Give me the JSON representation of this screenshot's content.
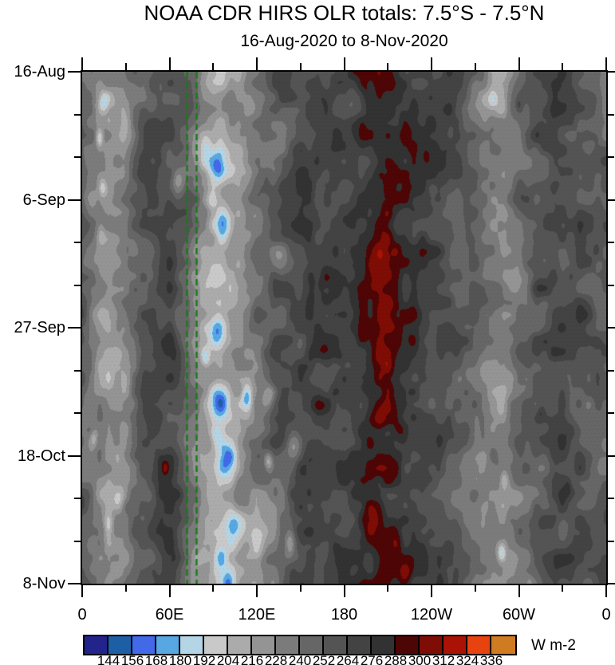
{
  "chart_data": {
    "type": "heatmap",
    "variant": "hovmoller-time-longitude",
    "title": "NOAA CDR HIRS OLR totals: 7.5°S - 7.5°N",
    "subtitle": "16-Aug-2020 to 8-Nov-2020",
    "x_axis": {
      "label": "",
      "major_ticks": [
        {
          "deg": 0,
          "label": "0"
        },
        {
          "deg": 60,
          "label": "60E"
        },
        {
          "deg": 120,
          "label": "120E"
        },
        {
          "deg": 180,
          "label": "180"
        },
        {
          "deg": 240,
          "label": "120W"
        },
        {
          "deg": 300,
          "label": "60W"
        },
        {
          "deg": 360,
          "label": "0"
        }
      ],
      "minor_tick_degs": [
        30,
        90,
        150,
        210,
        270,
        330
      ],
      "range_deg": [
        0,
        360
      ]
    },
    "y_axis": {
      "label": "",
      "major_ticks": [
        {
          "day": 0,
          "label": "16-Aug"
        },
        {
          "day": 21,
          "label": "6-Sep"
        },
        {
          "day": 42,
          "label": "27-Sep"
        },
        {
          "day": 63,
          "label": "18-Oct"
        },
        {
          "day": 84,
          "label": "8-Nov"
        }
      ],
      "minor_tick_days": [
        7,
        14,
        28,
        35,
        49,
        56,
        70,
        77
      ],
      "range_days": [
        0,
        84
      ],
      "start_date": "16-Aug-2020",
      "end_date": "8-Nov-2020"
    },
    "colorbar": {
      "units": "W m-2",
      "levels": [
        144,
        156,
        168,
        180,
        192,
        204,
        216,
        228,
        240,
        252,
        264,
        276,
        288,
        300,
        312,
        324,
        336
      ],
      "colors": [
        "#23238c",
        "#1d5fa5",
        "#4169e8",
        "#56a7e2",
        "#b3d5e5",
        "#c9c9c9",
        "#ababab",
        "#949494",
        "#7b7b7b",
        "#666666",
        "#545454",
        "#434343",
        "#323232",
        "#4d0505",
        "#7e0d05",
        "#aa1205",
        "#e8430f",
        "#ce7b22"
      ]
    },
    "reference_lines": {
      "lons_deg_east": [
        71.8,
        78.3
      ],
      "color": "#1a7a1a",
      "style": "dashed"
    },
    "field_model": {
      "comment": "OLR (W m-2) as base zonal profile + smooth noise + gaussian anomalies; negative anomalies = deep convection (blue), positive = clear-sky maxima (dark red)",
      "base_profile": [
        [
          0,
          250
        ],
        [
          8,
          234
        ],
        [
          18,
          218
        ],
        [
          28,
          226
        ],
        [
          40,
          254
        ],
        [
          52,
          266
        ],
        [
          62,
          266
        ],
        [
          72,
          250
        ],
        [
          82,
          224
        ],
        [
          95,
          212
        ],
        [
          108,
          222
        ],
        [
          120,
          238
        ],
        [
          132,
          252
        ],
        [
          145,
          264
        ],
        [
          158,
          272
        ],
        [
          172,
          272
        ],
        [
          183,
          272
        ],
        [
          195,
          281
        ],
        [
          210,
          284
        ],
        [
          225,
          280
        ],
        [
          238,
          271
        ],
        [
          252,
          263
        ],
        [
          265,
          248
        ],
        [
          278,
          232
        ],
        [
          290,
          224
        ],
        [
          300,
          240
        ],
        [
          312,
          257
        ],
        [
          325,
          266
        ],
        [
          338,
          262
        ],
        [
          350,
          255
        ],
        [
          360,
          250
        ]
      ],
      "noise_octaves": [
        {
          "sx": 15,
          "sy": 5.0,
          "amp": 16,
          "seed": 3
        },
        {
          "sx": 6,
          "sy": 2.1,
          "amp": 9,
          "seed": 17
        }
      ],
      "anomalies": [
        [
          92,
          15.5,
          6.5,
          3.0,
          -58
        ],
        [
          85,
          12.5,
          4,
          2,
          -28
        ],
        [
          66,
          18.5,
          4.5,
          2,
          -38
        ],
        [
          97,
          25,
          5.5,
          2.5,
          -46
        ],
        [
          89,
          21,
          4,
          2,
          -26
        ],
        [
          15,
          5,
          3,
          1.6,
          -30
        ],
        [
          12,
          11,
          2.5,
          1.8,
          -38
        ],
        [
          14,
          19,
          2.5,
          1.5,
          -28
        ],
        [
          13,
          27,
          3,
          1.5,
          -24
        ],
        [
          95,
          54,
          7,
          3,
          -55
        ],
        [
          113,
          53.5,
          3.5,
          2,
          -45
        ],
        [
          128,
          53,
          4,
          1.8,
          -32
        ],
        [
          85,
          47,
          3,
          1.5,
          -30
        ],
        [
          93,
          42.5,
          5.5,
          2.5,
          -38
        ],
        [
          100,
          63.5,
          6,
          3,
          -48
        ],
        [
          92,
          60,
          4,
          2,
          -32
        ],
        [
          145,
          62,
          5,
          2.5,
          -34
        ],
        [
          105,
          74.5,
          6.5,
          2.8,
          -40
        ],
        [
          95,
          80,
          5,
          2.5,
          -38
        ],
        [
          120,
          78,
          5,
          2.5,
          -36
        ],
        [
          143,
          77.5,
          4,
          2.5,
          -40
        ],
        [
          100,
          84,
          5,
          2,
          -44
        ],
        [
          25,
          70,
          4,
          2,
          -28
        ],
        [
          18,
          75,
          3,
          2,
          -26
        ],
        [
          8,
          60,
          2.5,
          1.5,
          -24
        ],
        [
          128,
          64,
          3,
          1.5,
          -36
        ],
        [
          282,
          4.5,
          3,
          1.5,
          -28
        ],
        [
          290,
          67,
          3,
          1.5,
          -28
        ],
        [
          288,
          79,
          3,
          1.6,
          -46
        ],
        [
          307,
          84,
          3,
          1.3,
          -26
        ],
        [
          118,
          55,
          12,
          6,
          -16
        ],
        [
          125,
          75,
          14,
          7,
          -15
        ],
        [
          108,
          20,
          13,
          8,
          -10
        ],
        [
          90,
          34,
          5,
          2.5,
          -24
        ],
        [
          135,
          10,
          10,
          5,
          -12
        ],
        [
          136,
          32,
          6,
          3,
          -14
        ],
        [
          196,
          4,
          5,
          1.8,
          18
        ],
        [
          212,
          17.5,
          5,
          2.2,
          18
        ],
        [
          236,
          14,
          2.5,
          1.2,
          14
        ],
        [
          207,
          25,
          6,
          3,
          20
        ],
        [
          204,
          32,
          7,
          4,
          22
        ],
        [
          210,
          40,
          6,
          3.5,
          21
        ],
        [
          204,
          47,
          7,
          3,
          21
        ],
        [
          192,
          43,
          4,
          2,
          16
        ],
        [
          205,
          57,
          9,
          2.2,
          20
        ],
        [
          218,
          59,
          5,
          1.8,
          17
        ],
        [
          200,
          73,
          8,
          3.5,
          22
        ],
        [
          215,
          76,
          5,
          2.5,
          19
        ],
        [
          222,
          82.5,
          5.5,
          2,
          20
        ],
        [
          315,
          56,
          2.5,
          1.2,
          16
        ],
        [
          334,
          68,
          2.5,
          1.4,
          16
        ],
        [
          57,
          65,
          2,
          1,
          30
        ],
        [
          178,
          46.5,
          3,
          1.2,
          13
        ],
        [
          300,
          5.5,
          2,
          1,
          14
        ],
        [
          228,
          5,
          3,
          1.5,
          12
        ]
      ]
    }
  }
}
